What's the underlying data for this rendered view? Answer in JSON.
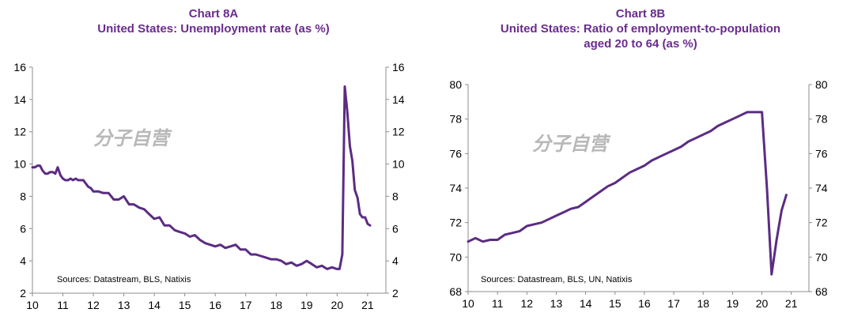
{
  "chart_data": [
    {
      "type": "line",
      "label": "Chart 8A",
      "title": "United States: Unemployment rate (as %)",
      "xlabel": "",
      "ylabel": "",
      "x_ticks": [
        "10",
        "11",
        "12",
        "13",
        "14",
        "15",
        "16",
        "17",
        "18",
        "19",
        "20",
        "21"
      ],
      "xlim": [
        2010,
        2021.6
      ],
      "ylim": [
        2,
        16
      ],
      "y_ticks": [
        2,
        4,
        6,
        8,
        10,
        12,
        14,
        16
      ],
      "right_axis": true,
      "grid": false,
      "source": "Sources:  Datastream,  BLS, Natixis",
      "watermark": "分子自营",
      "color": "#5b2c83",
      "series": [
        {
          "x": [
            2010.0,
            2010.08,
            2010.17,
            2010.25,
            2010.33,
            2010.42,
            2010.5,
            2010.58,
            2010.67,
            2010.75,
            2010.83,
            2010.92,
            2011.0,
            2011.08,
            2011.17,
            2011.25,
            2011.33,
            2011.42,
            2011.5,
            2011.58,
            2011.67,
            2011.75,
            2011.83,
            2011.92,
            2012.0,
            2012.17,
            2012.33,
            2012.5,
            2012.67,
            2012.83,
            2013.0,
            2013.17,
            2013.33,
            2013.5,
            2013.67,
            2013.83,
            2014.0,
            2014.17,
            2014.33,
            2014.5,
            2014.67,
            2014.83,
            2015.0,
            2015.17,
            2015.33,
            2015.5,
            2015.67,
            2015.83,
            2016.0,
            2016.17,
            2016.33,
            2016.5,
            2016.67,
            2016.83,
            2017.0,
            2017.17,
            2017.33,
            2017.5,
            2017.67,
            2017.83,
            2018.0,
            2018.17,
            2018.33,
            2018.5,
            2018.67,
            2018.83,
            2019.0,
            2019.17,
            2019.33,
            2019.5,
            2019.67,
            2019.83,
            2020.0,
            2020.08,
            2020.17,
            2020.25,
            2020.33,
            2020.42,
            2020.5,
            2020.58,
            2020.67,
            2020.75,
            2020.83,
            2020.92,
            2021.0,
            2021.08
          ],
          "y": [
            9.8,
            9.8,
            9.9,
            9.9,
            9.6,
            9.4,
            9.4,
            9.5,
            9.5,
            9.4,
            9.8,
            9.3,
            9.1,
            9.0,
            9.0,
            9.1,
            9.0,
            9.1,
            9.0,
            9.0,
            9.0,
            8.8,
            8.6,
            8.5,
            8.3,
            8.3,
            8.2,
            8.2,
            7.8,
            7.8,
            8.0,
            7.5,
            7.5,
            7.3,
            7.2,
            6.9,
            6.6,
            6.7,
            6.2,
            6.2,
            5.9,
            5.8,
            5.7,
            5.5,
            5.6,
            5.3,
            5.1,
            5.0,
            4.9,
            5.0,
            4.8,
            4.9,
            5.0,
            4.7,
            4.7,
            4.4,
            4.4,
            4.3,
            4.2,
            4.1,
            4.1,
            4.0,
            3.8,
            3.9,
            3.7,
            3.8,
            4.0,
            3.8,
            3.6,
            3.7,
            3.5,
            3.6,
            3.5,
            3.5,
            4.4,
            14.8,
            13.3,
            11.1,
            10.2,
            8.4,
            7.9,
            6.9,
            6.7,
            6.7,
            6.3,
            6.2
          ]
        }
      ]
    },
    {
      "type": "line",
      "label": "Chart 8B",
      "title_lines": [
        "United States: Ratio of employment-to-population",
        "aged 20 to 64 (as %)"
      ],
      "xlabel": "",
      "ylabel": "",
      "x_ticks": [
        "10",
        "11",
        "12",
        "13",
        "14",
        "15",
        "16",
        "17",
        "18",
        "19",
        "20",
        "21"
      ],
      "xlim": [
        2010,
        2021.6
      ],
      "ylim": [
        68,
        80
      ],
      "y_ticks": [
        68,
        70,
        72,
        74,
        76,
        78,
        80
      ],
      "right_axis": true,
      "grid": false,
      "source": "Sources:  Datastream,  BLS, UN, Natixis",
      "watermark": "分子自营",
      "color": "#5b2c83",
      "series": [
        {
          "x": [
            2010.0,
            2010.25,
            2010.5,
            2010.75,
            2011.0,
            2011.25,
            2011.5,
            2011.75,
            2012.0,
            2012.25,
            2012.5,
            2012.75,
            2013.0,
            2013.25,
            2013.5,
            2013.75,
            2014.0,
            2014.25,
            2014.5,
            2014.75,
            2015.0,
            2015.25,
            2015.5,
            2015.75,
            2016.0,
            2016.25,
            2016.5,
            2016.75,
            2017.0,
            2017.25,
            2017.5,
            2017.75,
            2018.0,
            2018.25,
            2018.5,
            2018.75,
            2019.0,
            2019.25,
            2019.5,
            2019.75,
            2020.0,
            2020.17,
            2020.33,
            2020.5,
            2020.67,
            2020.83
          ],
          "y": [
            70.9,
            71.1,
            70.9,
            71.0,
            71.0,
            71.3,
            71.4,
            71.5,
            71.8,
            71.9,
            72.0,
            72.2,
            72.4,
            72.6,
            72.8,
            72.9,
            73.2,
            73.5,
            73.8,
            74.1,
            74.3,
            74.6,
            74.9,
            75.1,
            75.3,
            75.6,
            75.8,
            76.0,
            76.2,
            76.4,
            76.7,
            76.9,
            77.1,
            77.3,
            77.6,
            77.8,
            78.0,
            78.2,
            78.4,
            78.4,
            78.4,
            74.0,
            69.0,
            71.0,
            72.7,
            73.6
          ]
        }
      ]
    }
  ]
}
